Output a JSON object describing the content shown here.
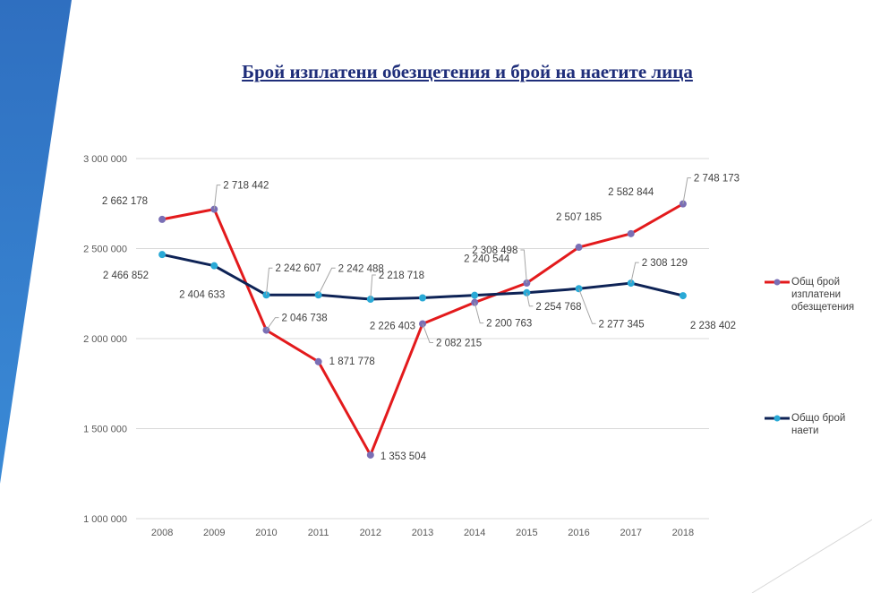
{
  "chart_data": {
    "type": "line",
    "title": "Брой изплатени обезщетения и брой на наетите лица",
    "categories": [
      "2008",
      "2009",
      "2010",
      "2011",
      "2012",
      "2013",
      "2014",
      "2015",
      "2016",
      "2017",
      "2018"
    ],
    "ylim": [
      1000000,
      3000000
    ],
    "yticks": [
      1000000,
      1500000,
      2000000,
      2500000,
      3000000
    ],
    "ytick_labels": [
      "1 000 000",
      "1 500 000",
      "2 000 000",
      "2 500 000",
      "3 000 000"
    ],
    "grid": true,
    "legend_position": "right",
    "series": [
      {
        "name": "Общ брой изплатени обезщетения",
        "color": "#e31a1c",
        "marker_color": "#7a6fb5",
        "values": [
          2662178,
          2718442,
          2046738,
          1871778,
          1353504,
          2082215,
          2200763,
          2308498,
          2507185,
          2582844,
          2748173
        ],
        "labels": [
          "2 662 178",
          "2 718 442",
          "2 046 738",
          "1 871 778",
          "1 353 504",
          "2 082 215",
          "2 200 763",
          "2 308 498",
          "2 507 185",
          "2 582 844",
          "2 748 173"
        ]
      },
      {
        "name": "Общо брой наети",
        "color": "#0e2356",
        "marker_color": "#29a9d6",
        "values": [
          2466852,
          2404633,
          2242607,
          2242488,
          2218718,
          2226403,
          2240544,
          2254768,
          2277345,
          2308129,
          2238402
        ],
        "labels": [
          "2 466 852",
          "2 404 633",
          "2 242 607",
          "2 242 488",
          "2 218 718",
          "2 226 403",
          "2 240 544",
          "2 254 768",
          "2 277 345",
          "2 308 129",
          "2 238 402"
        ]
      }
    ]
  },
  "legend": {
    "items": [
      {
        "lines": [
          "Общ брой",
          "изплатени",
          "обезщетения"
        ],
        "color": "#e31a1c",
        "marker_color": "#7a6fb5"
      },
      {
        "lines": [
          "Общо брой",
          "наети"
        ],
        "color": "#0e2356",
        "marker_color": "#29a9d6"
      }
    ]
  }
}
